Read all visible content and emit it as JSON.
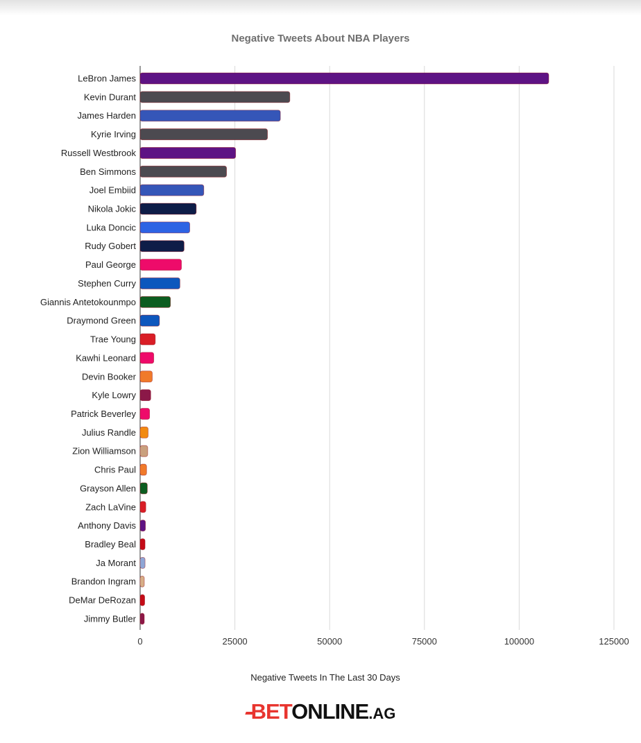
{
  "chart_data": {
    "type": "bar",
    "orientation": "horizontal",
    "title": "Negative Tweets About NBA Players",
    "xlabel": "Negative Tweets In The Last 30 Days",
    "ylabel": "",
    "xlim": [
      0,
      125000
    ],
    "xticks": [
      0,
      25000,
      50000,
      75000,
      100000,
      125000
    ],
    "xtick_labels": [
      "0",
      "25000",
      "50000",
      "75000",
      "100000",
      "125000"
    ],
    "grid": true,
    "categories": [
      "LeBron James",
      "Kevin Durant",
      "James Harden",
      "Kyrie Irving",
      "Russell Westbrook",
      "Ben Simmons",
      "Joel Embiid",
      "Nikola Jokic",
      "Luka Doncic",
      "Rudy Gobert",
      "Paul George",
      "Stephen Curry",
      "Giannis Antetokounmpo",
      "Draymond Green",
      "Trae Young",
      "Kawhi Leonard",
      "Devin Booker",
      "Kyle Lowry",
      "Patrick Beverley",
      "Julius Randle",
      "Zion Williamson",
      "Chris Paul",
      "Grayson Allen",
      "Zach LaVine",
      "Anthony Davis",
      "Bradley Beal",
      "Ja Morant",
      "Brandon Ingram",
      "DeMar DeRozan",
      "Jimmy Butler"
    ],
    "values": [
      107800,
      39500,
      37000,
      33600,
      25200,
      22800,
      16800,
      14800,
      13100,
      11600,
      10900,
      10500,
      8000,
      5100,
      4000,
      3600,
      3200,
      2800,
      2500,
      2100,
      2000,
      1700,
      1900,
      1500,
      1400,
      1300,
      1300,
      1100,
      1200,
      1100
    ],
    "colors": [
      "#5e1384",
      "#4c4a50",
      "#3556b8",
      "#4c4a50",
      "#5e1384",
      "#4c4a50",
      "#3556b8",
      "#0e1d48",
      "#2d63e4",
      "#0e1d48",
      "#ee0b6a",
      "#0d57bd",
      "#0c5d20",
      "#0d57bd",
      "#d91e26",
      "#ee0b6a",
      "#f07a2a",
      "#8b1848",
      "#ee0b6a",
      "#f28a12",
      "#c9a07e",
      "#f07a2a",
      "#0c5d20",
      "#d91e26",
      "#5e1384",
      "#c40b17",
      "#8fa6d6",
      "#d6ae87",
      "#c40b17",
      "#8b1848"
    ]
  },
  "brand": {
    "bet": "BET",
    "online": "ONLINE",
    "ag": ".AG"
  }
}
